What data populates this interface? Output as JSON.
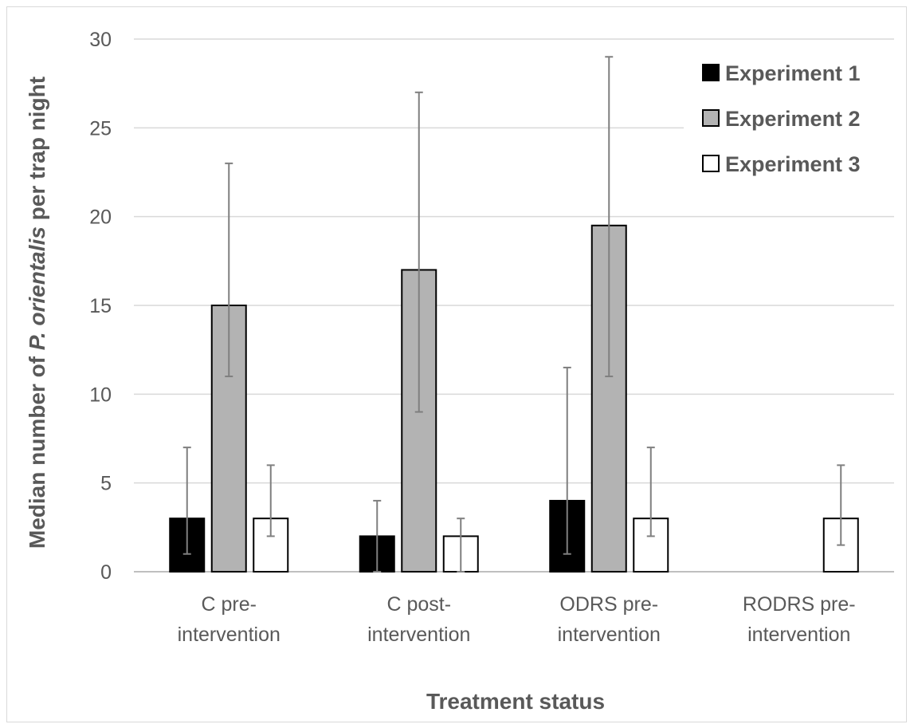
{
  "chart_data": {
    "type": "bar",
    "categories": [
      [
        "C pre-",
        "intervention"
      ],
      [
        "C post-",
        "intervention"
      ],
      [
        "ODRS pre-",
        "intervention"
      ],
      [
        "RODRS pre-",
        "intervention"
      ]
    ],
    "series": [
      {
        "name": "Experiment 1",
        "color": "#000000",
        "values": [
          3,
          2,
          4,
          null
        ],
        "err_low": [
          1,
          0,
          1,
          null
        ],
        "err_high": [
          7,
          4,
          11.5,
          null
        ]
      },
      {
        "name": "Experiment 2",
        "color": "#b3b3b3",
        "values": [
          15,
          17,
          19.5,
          null
        ],
        "err_low": [
          11,
          9,
          11,
          null
        ],
        "err_high": [
          23,
          27,
          29,
          null
        ]
      },
      {
        "name": "Experiment 3",
        "color": "#ffffff",
        "values": [
          3,
          2,
          3,
          3
        ],
        "err_low": [
          2,
          0,
          2,
          1.5
        ],
        "err_high": [
          6,
          3,
          7,
          6
        ]
      }
    ],
    "title": "",
    "xlabel": "Treatment status",
    "ylabel": {
      "prefix": "Median number of ",
      "italic": "P. orientalis",
      "suffix": " per trap night"
    },
    "ylim": [
      0,
      30
    ],
    "yticks": [
      0,
      5,
      10,
      15,
      20,
      25,
      30
    ],
    "grid": true,
    "legend_position": "top-right"
  }
}
